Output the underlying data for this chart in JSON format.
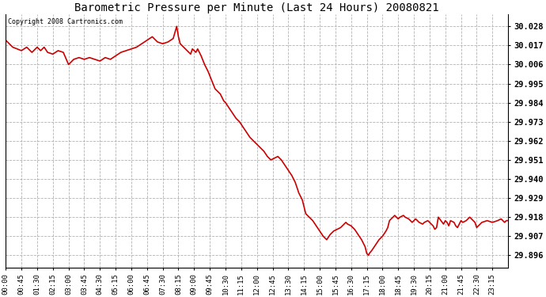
{
  "title": "Barometric Pressure per Minute (Last 24 Hours) 20080821",
  "copyright": "Copyright 2008 Cartronics.com",
  "line_color": "#cc0000",
  "bg_color": "#ffffff",
  "plot_bg_color": "#ffffff",
  "grid_color": "#aaaaaa",
  "yticks": [
    29.896,
    29.907,
    29.918,
    29.929,
    29.94,
    29.951,
    29.962,
    29.973,
    29.984,
    29.995,
    30.006,
    30.017,
    30.028
  ],
  "ylim": [
    29.889,
    30.035
  ],
  "xtick_labels": [
    "00:00",
    "00:45",
    "01:30",
    "02:15",
    "03:00",
    "03:45",
    "04:30",
    "05:15",
    "06:00",
    "06:45",
    "07:30",
    "08:15",
    "09:00",
    "09:45",
    "10:30",
    "11:15",
    "12:00",
    "12:45",
    "13:30",
    "14:15",
    "15:00",
    "15:45",
    "16:30",
    "17:15",
    "18:00",
    "18:45",
    "19:30",
    "20:15",
    "21:00",
    "21:45",
    "22:30",
    "23:15"
  ],
  "key_points": [
    [
      0,
      30.02
    ],
    [
      20,
      30.016
    ],
    [
      45,
      30.014
    ],
    [
      60,
      30.016
    ],
    [
      75,
      30.013
    ],
    [
      90,
      30.016
    ],
    [
      100,
      30.014
    ],
    [
      110,
      30.016
    ],
    [
      120,
      30.013
    ],
    [
      135,
      30.012
    ],
    [
      150,
      30.014
    ],
    [
      165,
      30.013
    ],
    [
      180,
      30.006
    ],
    [
      195,
      30.009
    ],
    [
      210,
      30.01
    ],
    [
      225,
      30.009
    ],
    [
      240,
      30.01
    ],
    [
      255,
      30.009
    ],
    [
      270,
      30.008
    ],
    [
      285,
      30.01
    ],
    [
      300,
      30.009
    ],
    [
      315,
      30.011
    ],
    [
      330,
      30.013
    ],
    [
      345,
      30.014
    ],
    [
      360,
      30.015
    ],
    [
      375,
      30.016
    ],
    [
      390,
      30.018
    ],
    [
      405,
      30.02
    ],
    [
      420,
      30.022
    ],
    [
      435,
      30.019
    ],
    [
      450,
      30.018
    ],
    [
      465,
      30.019
    ],
    [
      480,
      30.021
    ],
    [
      490,
      30.028
    ],
    [
      495,
      30.022
    ],
    [
      500,
      30.018
    ],
    [
      510,
      30.016
    ],
    [
      520,
      30.014
    ],
    [
      525,
      30.013
    ],
    [
      530,
      30.012
    ],
    [
      535,
      30.015
    ],
    [
      540,
      30.014
    ],
    [
      545,
      30.013
    ],
    [
      550,
      30.015
    ],
    [
      555,
      30.013
    ],
    [
      560,
      30.011
    ],
    [
      570,
      30.006
    ],
    [
      580,
      30.002
    ],
    [
      590,
      29.997
    ],
    [
      600,
      29.992
    ],
    [
      615,
      29.989
    ],
    [
      625,
      29.985
    ],
    [
      630,
      29.984
    ],
    [
      640,
      29.981
    ],
    [
      650,
      29.978
    ],
    [
      660,
      29.975
    ],
    [
      670,
      29.973
    ],
    [
      680,
      29.97
    ],
    [
      690,
      29.967
    ],
    [
      700,
      29.964
    ],
    [
      710,
      29.962
    ],
    [
      720,
      29.96
    ],
    [
      730,
      29.958
    ],
    [
      740,
      29.956
    ],
    [
      750,
      29.953
    ],
    [
      760,
      29.951
    ],
    [
      770,
      29.952
    ],
    [
      780,
      29.953
    ],
    [
      790,
      29.951
    ],
    [
      800,
      29.948
    ],
    [
      810,
      29.945
    ],
    [
      820,
      29.942
    ],
    [
      830,
      29.938
    ],
    [
      840,
      29.932
    ],
    [
      850,
      29.928
    ],
    [
      855,
      29.924
    ],
    [
      860,
      29.92
    ],
    [
      870,
      29.918
    ],
    [
      880,
      29.916
    ],
    [
      890,
      29.913
    ],
    [
      900,
      29.91
    ],
    [
      910,
      29.907
    ],
    [
      915,
      29.906
    ],
    [
      920,
      29.905
    ],
    [
      930,
      29.908
    ],
    [
      940,
      29.91
    ],
    [
      950,
      29.911
    ],
    [
      960,
      29.912
    ],
    [
      970,
      29.914
    ],
    [
      975,
      29.915
    ],
    [
      980,
      29.914
    ],
    [
      990,
      29.913
    ],
    [
      1000,
      29.911
    ],
    [
      1010,
      29.908
    ],
    [
      1020,
      29.905
    ],
    [
      1030,
      29.901
    ],
    [
      1035,
      29.897
    ],
    [
      1040,
      29.896
    ],
    [
      1042,
      29.897
    ],
    [
      1050,
      29.899
    ],
    [
      1060,
      29.902
    ],
    [
      1070,
      29.905
    ],
    [
      1080,
      29.907
    ],
    [
      1090,
      29.91
    ],
    [
      1095,
      29.912
    ],
    [
      1100,
      29.916
    ],
    [
      1110,
      29.918
    ],
    [
      1115,
      29.919
    ],
    [
      1120,
      29.918
    ],
    [
      1125,
      29.917
    ],
    [
      1130,
      29.918
    ],
    [
      1140,
      29.919
    ],
    [
      1145,
      29.918
    ],
    [
      1155,
      29.917
    ],
    [
      1160,
      29.916
    ],
    [
      1165,
      29.915
    ],
    [
      1170,
      29.916
    ],
    [
      1175,
      29.917
    ],
    [
      1180,
      29.916
    ],
    [
      1185,
      29.915
    ],
    [
      1195,
      29.914
    ],
    [
      1200,
      29.915
    ],
    [
      1210,
      29.916
    ],
    [
      1215,
      29.915
    ],
    [
      1220,
      29.914
    ],
    [
      1225,
      29.913
    ],
    [
      1230,
      29.911
    ],
    [
      1235,
      29.912
    ],
    [
      1240,
      29.918
    ],
    [
      1255,
      29.914
    ],
    [
      1260,
      29.916
    ],
    [
      1265,
      29.915
    ],
    [
      1270,
      29.913
    ],
    [
      1275,
      29.916
    ],
    [
      1285,
      29.915
    ],
    [
      1290,
      29.913
    ],
    [
      1295,
      29.912
    ],
    [
      1305,
      29.916
    ],
    [
      1310,
      29.915
    ],
    [
      1320,
      29.916
    ],
    [
      1330,
      29.918
    ],
    [
      1340,
      29.916
    ],
    [
      1345,
      29.915
    ],
    [
      1350,
      29.912
    ],
    [
      1355,
      29.913
    ],
    [
      1360,
      29.914
    ],
    [
      1365,
      29.915
    ],
    [
      1380,
      29.916
    ],
    [
      1395,
      29.915
    ],
    [
      1410,
      29.916
    ],
    [
      1420,
      29.917
    ],
    [
      1425,
      29.916
    ],
    [
      1430,
      29.915
    ],
    [
      1435,
      29.916
    ],
    [
      1440,
      29.916
    ]
  ]
}
